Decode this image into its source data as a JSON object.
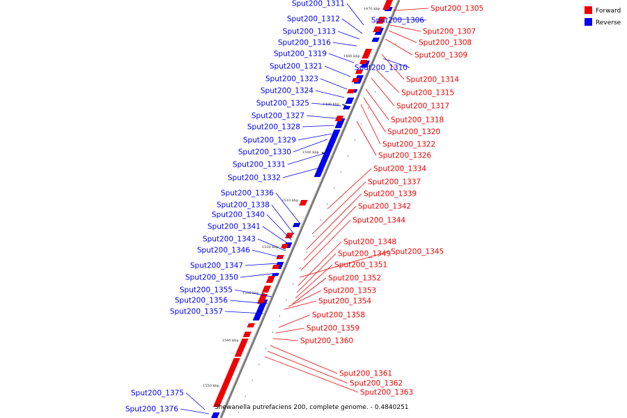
{
  "colors": {
    "forward": "#ee0000",
    "reverse": "#0000ee",
    "axis": "#888888",
    "tick": "#222222"
  },
  "legend": {
    "forward_label": "Forward",
    "reverse_label": "Reverse"
  },
  "caption": "Shewanella putrefaciens 200, complete genome. - 0.4840251",
  "ticks": [
    "1470 kbp",
    "1480 kbp",
    "1490 kbp",
    "1500 kbp",
    "1510 kbp",
    "1520 kbp",
    "1530 kbp",
    "1540 kbp",
    "1550 kbp"
  ],
  "forward_genes": [
    "Sput200_1305",
    "Sput200_1307",
    "Sput200_1308",
    "Sput200_1309",
    "Sput200_1314",
    "Sput200_1315",
    "Sput200_1317",
    "Sput200_1318",
    "Sput200_1320",
    "Sput200_1322",
    "Sput200_1326",
    "Sput200_1334",
    "Sput200_1337",
    "Sput200_1339",
    "Sput200_1342",
    "Sput200_1344",
    "Sput200_1345",
    "Sput200_1348",
    "Sput200_1349",
    "Sput200_1351",
    "Sput200_1352",
    "Sput200_1353",
    "Sput200_1354",
    "Sput200_1358",
    "Sput200_1359",
    "Sput200_1360",
    "Sput200_1361",
    "Sput200_1362",
    "Sput200_1363"
  ],
  "reverse_genes": [
    "Sput200_1306",
    "Sput200_1310",
    "Sput200_1311",
    "Sput200_1312",
    "Sput200_1313",
    "Sput200_1316",
    "Sput200_1319",
    "Sput200_1321",
    "Sput200_1323",
    "Sput200_1324",
    "Sput200_1325",
    "Sput200_1327",
    "Sput200_1328",
    "Sput200_1329",
    "Sput200_1330",
    "Sput200_1331",
    "Sput200_1332",
    "Sput200_1336",
    "Sput200_1338",
    "Sput200_1340",
    "Sput200_1341",
    "Sput200_1343",
    "Sput200_1346",
    "Sput200_1347",
    "Sput200_1350",
    "Sput200_1355",
    "Sput200_1356",
    "Sput200_1357",
    "Sput200_1375",
    "Sput200_1376"
  ]
}
